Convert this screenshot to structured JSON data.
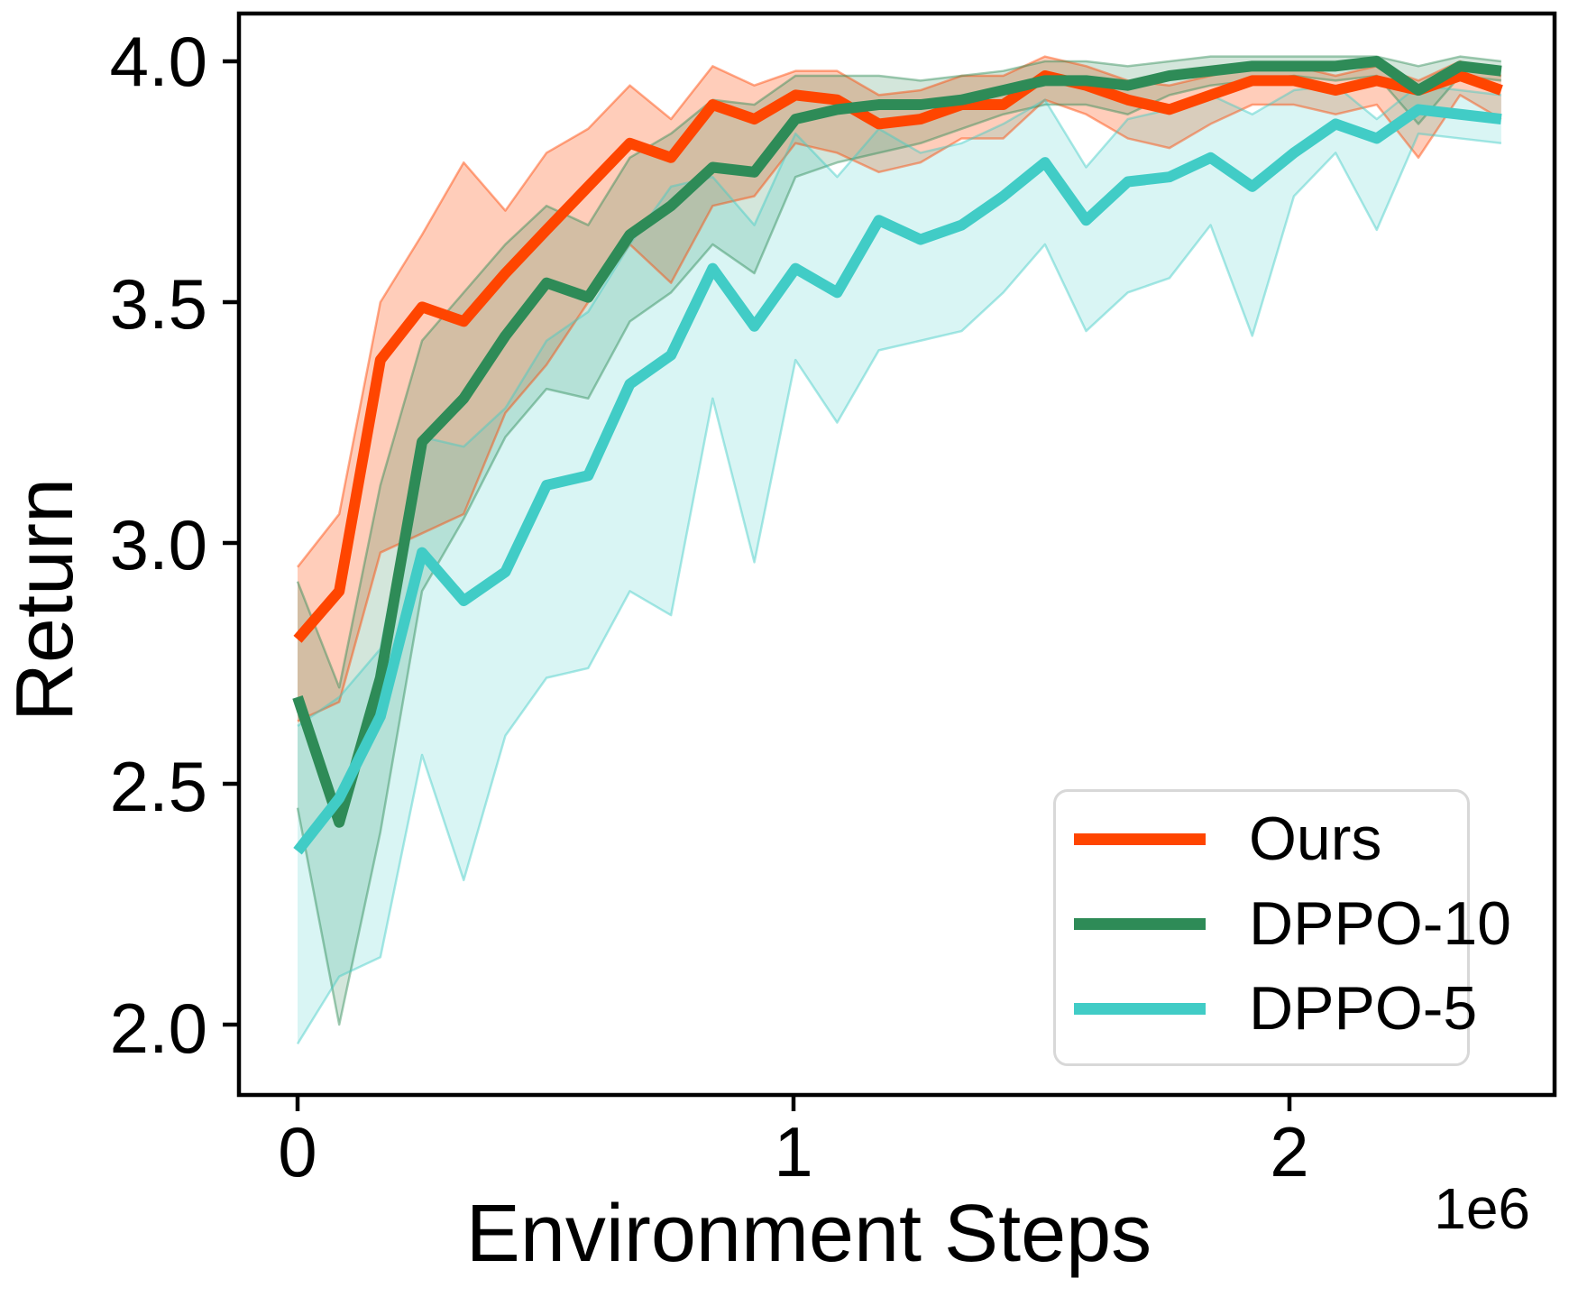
{
  "chart_data": {
    "type": "line",
    "title": "",
    "xlabel": "Environment Steps",
    "ylabel": "Return",
    "x_offset_label": "1e6",
    "x_unit": "1e6 environment steps",
    "xtick_labels": [
      "0",
      "1",
      "2"
    ],
    "xtick_values": [
      0,
      1,
      2
    ],
    "ytick_labels": [
      "4.0",
      "3.5",
      "3.0",
      "2.5",
      "2.0"
    ],
    "ytick_values": [
      4.0,
      3.5,
      3.0,
      2.5,
      2.0
    ],
    "xlim": [
      -0.124,
      2.536
    ],
    "ylim": [
      1.855,
      4.103
    ],
    "grid": false,
    "legend": {
      "position": "lower right",
      "entries": [
        "Ours",
        "DPPO-10",
        "DPPO-5"
      ]
    },
    "x": [
      0.0,
      0.084,
      0.167,
      0.251,
      0.335,
      0.419,
      0.502,
      0.586,
      0.67,
      0.753,
      0.837,
      0.921,
      1.004,
      1.088,
      1.172,
      1.256,
      1.339,
      1.423,
      1.507,
      1.59,
      1.674,
      1.758,
      1.841,
      1.925,
      2.009,
      2.093,
      2.176,
      2.26,
      2.344,
      2.427
    ],
    "series": [
      {
        "name": "Ours",
        "color": "#FF4500",
        "band_alpha": 0.27,
        "mean": [
          2.8,
          2.9,
          3.38,
          3.49,
          3.46,
          3.56,
          3.65,
          3.74,
          3.83,
          3.8,
          3.91,
          3.88,
          3.93,
          3.92,
          3.87,
          3.88,
          3.91,
          3.91,
          3.97,
          3.95,
          3.92,
          3.9,
          3.93,
          3.96,
          3.96,
          3.94,
          3.96,
          3.94,
          3.97,
          3.94
        ],
        "upper": [
          2.95,
          3.06,
          3.5,
          3.64,
          3.79,
          3.69,
          3.81,
          3.86,
          3.95,
          3.88,
          3.99,
          3.95,
          3.98,
          3.98,
          3.93,
          3.94,
          3.97,
          3.97,
          4.01,
          3.99,
          3.96,
          3.95,
          3.97,
          3.99,
          3.99,
          3.97,
          3.99,
          3.96,
          4.0,
          3.97
        ],
        "lower": [
          2.63,
          2.67,
          2.98,
          3.02,
          3.06,
          3.27,
          3.37,
          3.5,
          3.62,
          3.54,
          3.7,
          3.72,
          3.83,
          3.81,
          3.77,
          3.79,
          3.84,
          3.84,
          3.92,
          3.89,
          3.84,
          3.82,
          3.87,
          3.91,
          3.91,
          3.89,
          3.91,
          3.8,
          3.93,
          3.88
        ]
      },
      {
        "name": "DPPO-10",
        "color": "#2E8B57",
        "band_alpha": 0.21,
        "mean": [
          2.68,
          2.42,
          2.72,
          3.21,
          3.3,
          3.43,
          3.54,
          3.51,
          3.64,
          3.7,
          3.78,
          3.77,
          3.88,
          3.9,
          3.91,
          3.91,
          3.92,
          3.94,
          3.96,
          3.96,
          3.95,
          3.97,
          3.98,
          3.99,
          3.99,
          3.99,
          4.0,
          3.94,
          3.99,
          3.98
        ],
        "upper": [
          2.92,
          2.7,
          3.12,
          3.42,
          3.52,
          3.62,
          3.7,
          3.66,
          3.8,
          3.85,
          3.92,
          3.91,
          3.97,
          3.97,
          3.97,
          3.96,
          3.97,
          3.98,
          4.0,
          4.0,
          3.99,
          4.0,
          4.01,
          4.01,
          4.01,
          4.01,
          4.01,
          3.99,
          4.01,
          4.0
        ],
        "lower": [
          2.45,
          2.0,
          2.4,
          2.9,
          3.05,
          3.22,
          3.32,
          3.3,
          3.46,
          3.52,
          3.62,
          3.56,
          3.76,
          3.79,
          3.81,
          3.83,
          3.86,
          3.89,
          3.91,
          3.91,
          3.89,
          3.93,
          3.95,
          3.96,
          3.97,
          3.96,
          3.97,
          3.87,
          3.97,
          3.96
        ]
      },
      {
        "name": "DPPO-5",
        "color": "#41CCC6",
        "band_alpha": 0.2,
        "mean": [
          2.36,
          2.47,
          2.64,
          2.98,
          2.88,
          2.94,
          3.12,
          3.14,
          3.33,
          3.39,
          3.57,
          3.45,
          3.57,
          3.52,
          3.67,
          3.63,
          3.66,
          3.72,
          3.79,
          3.67,
          3.75,
          3.76,
          3.8,
          3.74,
          3.81,
          3.87,
          3.84,
          3.9,
          3.89,
          3.88
        ],
        "upper": [
          2.62,
          2.68,
          2.78,
          3.22,
          3.2,
          3.28,
          3.42,
          3.48,
          3.62,
          3.74,
          3.76,
          3.66,
          3.85,
          3.76,
          3.86,
          3.81,
          3.83,
          3.87,
          3.92,
          3.78,
          3.88,
          3.9,
          3.93,
          3.89,
          3.94,
          3.95,
          3.88,
          3.95,
          3.94,
          3.93
        ],
        "lower": [
          1.96,
          2.1,
          2.14,
          2.56,
          2.3,
          2.6,
          2.72,
          2.74,
          2.9,
          2.85,
          3.3,
          2.96,
          3.38,
          3.25,
          3.4,
          3.42,
          3.44,
          3.52,
          3.62,
          3.44,
          3.52,
          3.55,
          3.66,
          3.43,
          3.72,
          3.81,
          3.65,
          3.85,
          3.84,
          3.83
        ]
      }
    ]
  }
}
